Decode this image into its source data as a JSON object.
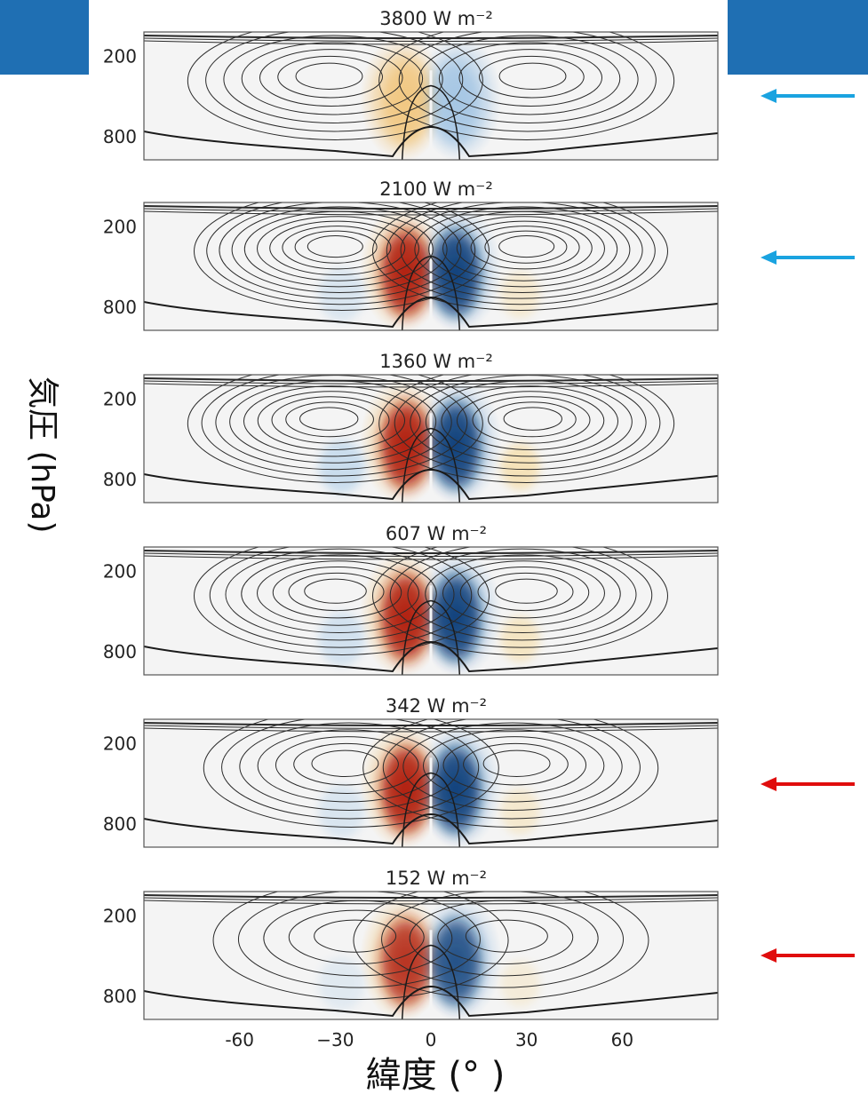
{
  "chart_data": {
    "type": "heatmap",
    "description_note": "",
    "ylabel": "気圧 (hPa)",
    "xlabel": "緯度 (°  )",
    "x_ticks": [
      "-60",
      "−30",
      "0",
      "30",
      "60"
    ],
    "x_tick_values": [
      -60,
      -30,
      0,
      30,
      60
    ],
    "y_ticks": [
      "200",
      "800"
    ],
    "y_tick_values": [
      200,
      800
    ],
    "xlim": [
      -90,
      90
    ],
    "ylim": [
      1000,
      0
    ],
    "panels": [
      {
        "title": "3800 W m⁻²",
        "intensity": 0.45,
        "outer_cells": 0.0,
        "jet_lat": 30,
        "jet_strength": 0.55,
        "arrow": "blue"
      },
      {
        "title": "2100 W m⁻²",
        "intensity": 0.95,
        "outer_cells": 0.35,
        "jet_lat": 28,
        "jet_strength": 0.95,
        "arrow": "blue"
      },
      {
        "title": "1360 W m⁻²",
        "intensity": 1.0,
        "outer_cells": 0.55,
        "jet_lat": 30,
        "jet_strength": 0.85,
        "arrow": ""
      },
      {
        "title": "607 W m⁻²",
        "intensity": 1.0,
        "outer_cells": 0.45,
        "jet_lat": 28,
        "jet_strength": 0.65,
        "arrow": ""
      },
      {
        "title": "342 W m⁻²",
        "intensity": 0.95,
        "outer_cells": 0.35,
        "jet_lat": 25,
        "jet_strength": 0.5,
        "arrow": "red"
      },
      {
        "title": "152 W m⁻²",
        "intensity": 0.85,
        "outer_cells": 0.25,
        "jet_lat": 22,
        "jet_strength": 0.35,
        "arrow": "red"
      }
    ],
    "colors": {
      "warm": "#b01e0c",
      "cool": "#0d3f7a",
      "contour": "#2a2a2a",
      "arrow_blue": "#1aa3e0",
      "arrow_red": "#e00d0d",
      "banner": "#1f6fb3"
    }
  }
}
